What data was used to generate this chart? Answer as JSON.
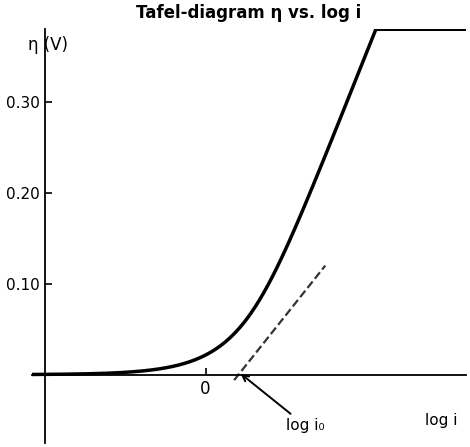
{
  "title": "Tafel-diagram η vs. log i",
  "xlabel": "log i",
  "ylabel": "η (V)",
  "yticks": [
    0.1,
    0.2,
    0.3
  ],
  "xticks": [
    0
  ],
  "annotation_text": "log i₀",
  "background_color": "#ffffff",
  "curve_color": "#000000",
  "dashed_color": "#333333",
  "title_fontsize": 12,
  "label_fontsize": 11,
  "tick_fontsize": 11,
  "i0_log": 0.38,
  "tafel_slope": 0.12,
  "x_range_left": -2.0,
  "x_range_right": 3.0,
  "y_range_top": 0.38,
  "y_range_bottom": -0.075,
  "yaxis_x": -1.85,
  "linewidth": 2.5
}
